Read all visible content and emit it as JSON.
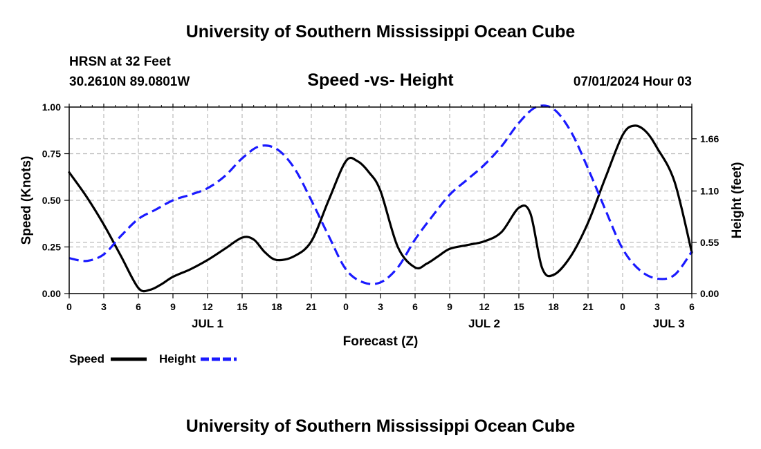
{
  "header": {
    "title_top": "University of Southern Mississippi Ocean Cube",
    "station": "HRSN at 32 Feet",
    "coords": "30.2610N  89.0801W",
    "forecast_time": "07/01/2024 Hour 03",
    "title_bottom": "University of Southern Mississippi Ocean Cube"
  },
  "chart_data": {
    "type": "line",
    "title": "Speed -vs- Height",
    "xlabel": "Forecast (Z)",
    "ylabel": "Speed (Knots)",
    "y2label": "Height (feet)",
    "xlim": [
      0,
      54
    ],
    "ylim": [
      0,
      1
    ],
    "y2lim": [
      0,
      2.0
    ],
    "x_ticks": [
      0,
      3,
      6,
      9,
      12,
      15,
      18,
      21,
      24,
      27,
      30,
      33,
      36,
      39,
      42,
      45,
      48,
      51,
      54
    ],
    "x_tick_labels": [
      "0",
      "3",
      "6",
      "9",
      "12",
      "15",
      "18",
      "21",
      "0",
      "3",
      "6",
      "9",
      "12",
      "15",
      "18",
      "21",
      "0",
      "3",
      "6"
    ],
    "date_labels": [
      {
        "x": 12,
        "label": "JUL 1"
      },
      {
        "x": 36,
        "label": "JUL 2"
      },
      {
        "x": 52,
        "label": "JUL 3"
      }
    ],
    "y_ticks": [
      0,
      0.25,
      0.5,
      0.75,
      1.0
    ],
    "y_tick_labels": [
      "0.00",
      "0.25",
      "0.50",
      "0.75",
      "1.00"
    ],
    "y2_ticks": [
      0.0,
      0.55,
      1.1,
      1.66
    ],
    "y2_tick_labels": [
      "0.00",
      "0.55",
      "1.10",
      "1.66"
    ],
    "grid": true,
    "series": [
      {
        "name": "Speed",
        "axis": "left",
        "color": "#000000",
        "style": "solid",
        "x": [
          0,
          1.5,
          3,
          4.5,
          6,
          7,
          8,
          9,
          10.5,
          12,
          13.5,
          15,
          16,
          17,
          18,
          19.5,
          21,
          22.5,
          24,
          25,
          26,
          27,
          28.5,
          30,
          31,
          32,
          33,
          34.5,
          36,
          37.5,
          39,
          40,
          41,
          42,
          43.5,
          45,
          46.5,
          48,
          49,
          50,
          51,
          52.5,
          54
        ],
        "values": [
          0.65,
          0.52,
          0.37,
          0.2,
          0.03,
          0.02,
          0.05,
          0.09,
          0.13,
          0.18,
          0.24,
          0.3,
          0.29,
          0.22,
          0.18,
          0.2,
          0.28,
          0.5,
          0.71,
          0.71,
          0.65,
          0.55,
          0.25,
          0.14,
          0.16,
          0.2,
          0.24,
          0.26,
          0.28,
          0.33,
          0.46,
          0.43,
          0.14,
          0.1,
          0.2,
          0.38,
          0.62,
          0.85,
          0.9,
          0.87,
          0.78,
          0.6,
          0.22
        ]
      },
      {
        "name": "Height",
        "axis": "right",
        "color": "#1a1aff",
        "style": "dashed",
        "x": [
          0,
          1.5,
          3,
          4.5,
          6,
          7.5,
          9,
          10.5,
          12,
          13.5,
          15,
          16.5,
          18,
          19.5,
          21,
          22.5,
          24,
          25.5,
          27,
          28.5,
          30,
          31.5,
          33,
          34.5,
          36,
          37.5,
          39,
          40.5,
          42,
          43.5,
          45,
          46.5,
          48,
          49.5,
          51,
          52.5,
          54
        ],
        "values": [
          0.38,
          0.35,
          0.42,
          0.62,
          0.8,
          0.9,
          1.0,
          1.06,
          1.13,
          1.26,
          1.45,
          1.58,
          1.55,
          1.35,
          1.0,
          0.62,
          0.26,
          0.12,
          0.12,
          0.28,
          0.58,
          0.83,
          1.06,
          1.22,
          1.38,
          1.58,
          1.83,
          2.0,
          1.98,
          1.74,
          1.34,
          0.9,
          0.48,
          0.25,
          0.16,
          0.2,
          0.45
        ]
      }
    ],
    "legend": {
      "position": "bottom-left",
      "items": [
        "Speed",
        "Height"
      ]
    }
  }
}
